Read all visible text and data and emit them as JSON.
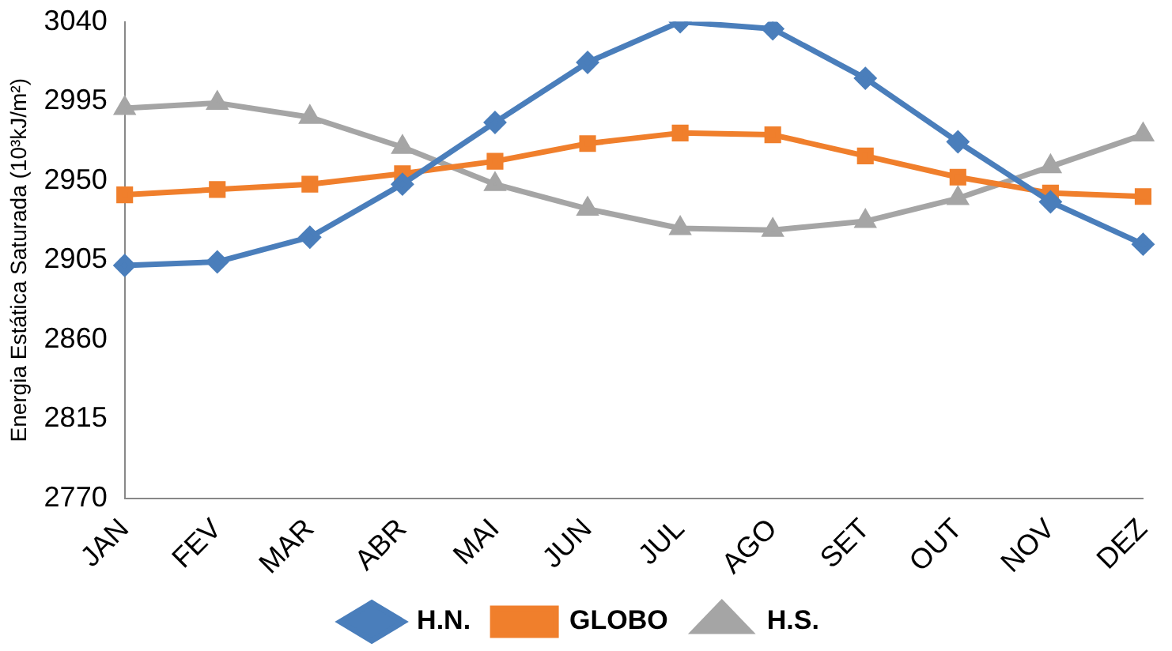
{
  "chart_data": {
    "type": "line",
    "ylabel": "Energia Estática Saturada (10³kJ/m²)",
    "categories": [
      "JAN",
      "FEV",
      "MAR",
      "ABR",
      "MAI",
      "JUN",
      "JUL",
      "AGO",
      "SET",
      "OUT",
      "NOV",
      "DEZ"
    ],
    "series": [
      {
        "name": "H.N.",
        "color": "#4a7ebb",
        "marker": "diamond",
        "values": [
          2902,
          2904,
          2918,
          2948,
          2983,
          3017,
          3040,
          3036,
          3008,
          2972,
          2938,
          2914
        ]
      },
      {
        "name": "GLOBO",
        "color": "#f07f2c",
        "marker": "square",
        "values": [
          2942,
          2945,
          2948,
          2954,
          2961,
          2971,
          2977,
          2976,
          2964,
          2952,
          2943,
          2941
        ]
      },
      {
        "name": "H.S.",
        "color": "#a5a5a5",
        "marker": "triangle",
        "values": [
          2991,
          2994,
          2986,
          2969,
          2948,
          2934,
          2923,
          2922,
          2927,
          2940,
          2958,
          2976
        ]
      }
    ],
    "ylim": [
      2770,
      3040
    ],
    "yticks": [
      2770,
      2815,
      2860,
      2905,
      2950,
      2995,
      3040
    ],
    "grid": false,
    "legend": "bottom",
    "line_style": "solid"
  }
}
